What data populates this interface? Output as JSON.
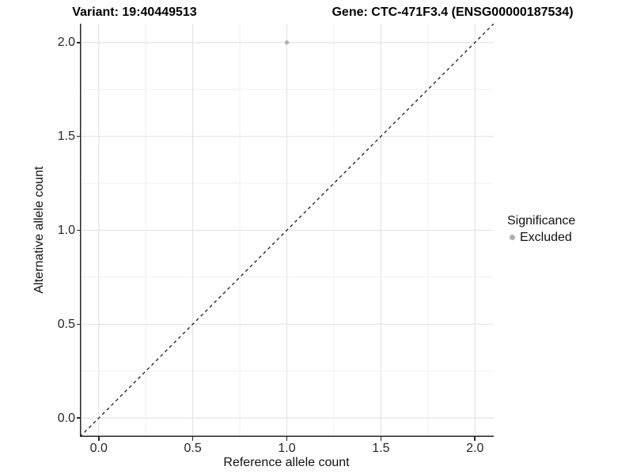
{
  "chart_data": {
    "type": "scatter",
    "title_left": "Variant: 19:40449513",
    "title_right": "Gene: CTC-471F3.4 (ENSG00000187534)",
    "xlabel": "Reference allele count",
    "ylabel": "Alternative allele count",
    "xlim": [
      -0.1,
      2.1
    ],
    "ylim": [
      -0.1,
      2.1
    ],
    "x_ticks": [
      0.0,
      0.5,
      1.0,
      1.5,
      2.0
    ],
    "y_ticks": [
      0.0,
      0.5,
      1.0,
      1.5,
      2.0
    ],
    "x_tick_labels": [
      "0.0",
      "0.5",
      "1.0",
      "1.5",
      "2.0"
    ],
    "y_tick_labels": [
      "0.0",
      "0.5",
      "1.0",
      "1.5",
      "2.0"
    ],
    "x_minor_ticks": [
      0.25,
      0.75,
      1.25,
      1.75
    ],
    "y_minor_ticks": [
      0.25,
      0.75,
      1.25,
      1.75
    ],
    "grid": true,
    "series": [
      {
        "name": "Excluded",
        "color": "#b0b0b0",
        "points": [
          {
            "x": 1.0,
            "y": 2.0
          }
        ]
      }
    ],
    "reference_line": {
      "type": "identity",
      "slope": 1,
      "intercept": 0,
      "style": "dashed",
      "color": "#1a1a1a"
    },
    "legend": {
      "title": "Significance",
      "position": "right",
      "entries": [
        {
          "label": "Excluded",
          "color": "#b0b0b0",
          "marker": "circle"
        }
      ]
    },
    "style": {
      "point_color": "#b0b0b0",
      "grid_major_color": "#e2e2e2",
      "grid_minor_color": "#efefef",
      "axis_line_color": "#262626",
      "tick_text_color": "#262626",
      "background": "#ffffff"
    }
  }
}
